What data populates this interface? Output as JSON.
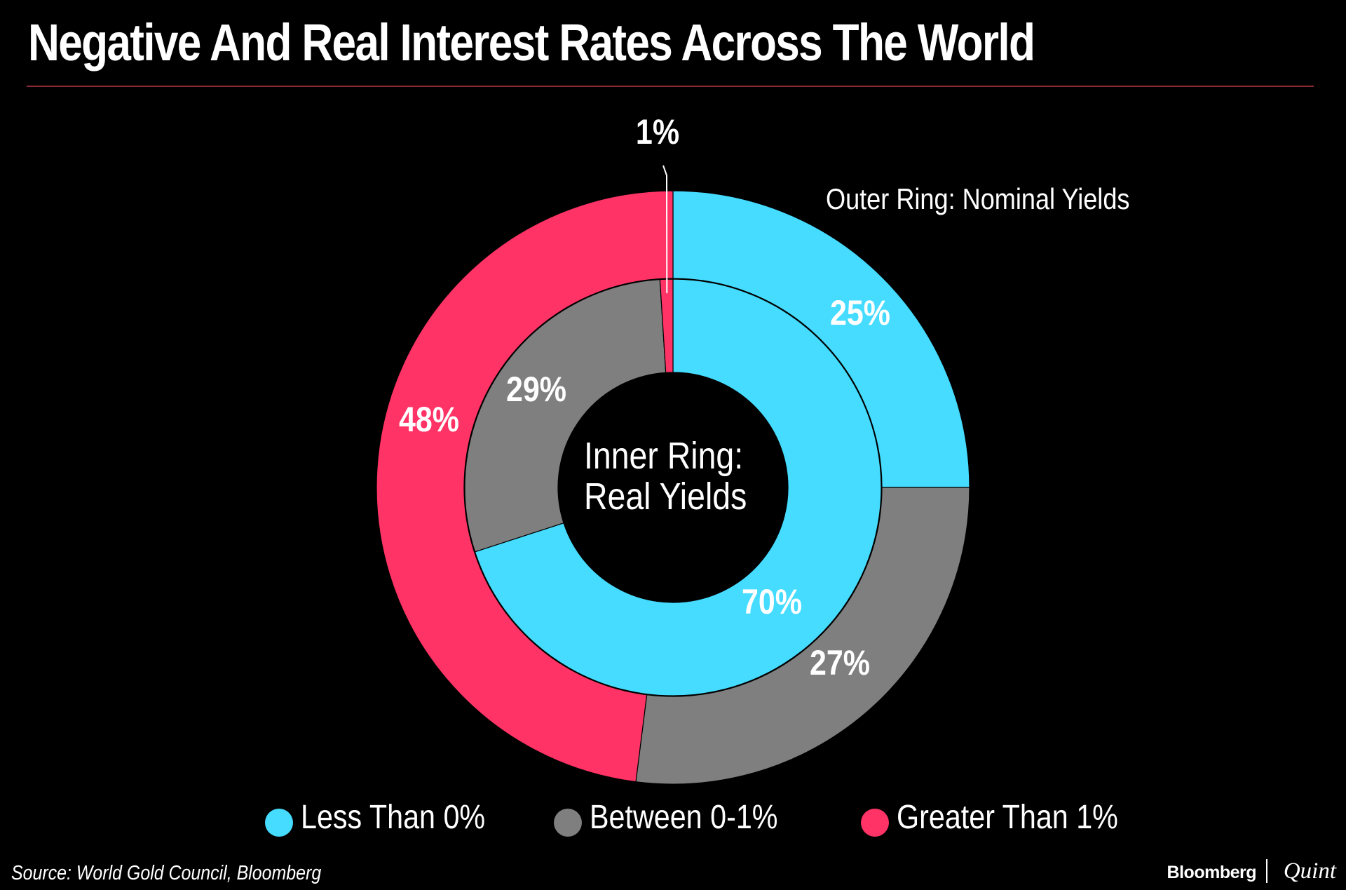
{
  "title": "Negative And Real Interest Rates Across The World",
  "source": "Source: World Gold Council, Bloomberg",
  "brand": {
    "name": "Bloomberg",
    "suffix": "Quint"
  },
  "chart_data": {
    "type": "pie",
    "variant": "nested-donut",
    "categories": [
      "Less Than 0%",
      "Between 0-1%",
      "Greater Than 1%"
    ],
    "colors": [
      "#45dcff",
      "#7f7f7f",
      "#ff3366"
    ],
    "series": [
      {
        "ring": "outer",
        "name": "Outer Ring: Nominal Yields",
        "values": [
          25,
          27,
          48
        ],
        "labels": [
          "25%",
          "27%",
          "48%"
        ]
      },
      {
        "ring": "inner",
        "name": "Inner Ring: Real Yields",
        "values": [
          70,
          29,
          1
        ],
        "labels": [
          "70%",
          "29%",
          "1%"
        ]
      }
    ],
    "center_label": [
      "Inner Ring:",
      "Real Yields"
    ],
    "outer_label": "Outer Ring: Nominal Yields",
    "legend_position": "bottom"
  }
}
